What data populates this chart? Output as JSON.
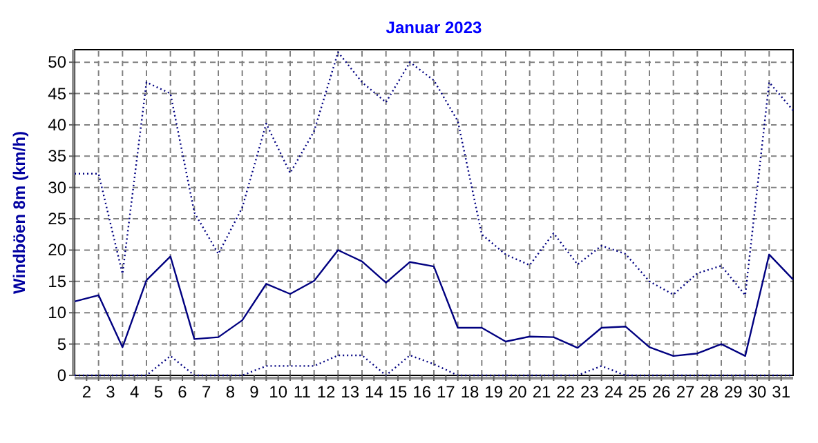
{
  "chart_data": {
    "type": "line",
    "title": "Januar 2023",
    "ylabel": "Windböen 8m  (km/h)",
    "x": [
      1.5,
      2.5,
      3.5,
      4.5,
      5.5,
      6.5,
      7.5,
      8.5,
      9.5,
      10.5,
      11.5,
      12.5,
      13.5,
      14.5,
      15.5,
      16.5,
      17.5,
      18.5,
      19.5,
      20.5,
      21.5,
      22.5,
      23.5,
      24.5,
      25.5,
      26.5,
      27.5,
      28.5,
      29.5,
      30.5,
      31.5
    ],
    "xlim": [
      1.5,
      31.5
    ],
    "xticks": [
      2,
      3,
      4,
      5,
      6,
      7,
      8,
      9,
      10,
      11,
      12,
      13,
      14,
      15,
      16,
      17,
      18,
      19,
      20,
      21,
      22,
      23,
      24,
      25,
      26,
      27,
      28,
      29,
      30,
      31,
      {
        "value": 2.5,
        "label": null
      },
      {
        "value": 3.5,
        "label": null
      },
      {
        "value": 4.5,
        "label": null
      },
      {
        "value": 5.5,
        "label": null
      },
      {
        "value": 6.5,
        "label": null
      },
      {
        "value": 7.5,
        "label": null
      },
      {
        "value": 8.5,
        "label": null
      },
      {
        "value": 9.5,
        "label": null
      },
      {
        "value": 10.5,
        "label": null
      },
      {
        "value": 11.5,
        "label": null
      },
      {
        "value": 12.5,
        "label": null
      },
      {
        "value": 13.5,
        "label": null
      },
      {
        "value": 14.5,
        "label": null
      },
      {
        "value": 15.5,
        "label": null
      },
      {
        "value": 16.5,
        "label": null
      },
      {
        "value": 17.5,
        "label": null
      },
      {
        "value": 18.5,
        "label": null
      },
      {
        "value": 19.5,
        "label": null
      },
      {
        "value": 20.5,
        "label": null
      },
      {
        "value": 21.5,
        "label": null
      },
      {
        "value": 22.5,
        "label": null
      },
      {
        "value": 23.5,
        "label": null
      },
      {
        "value": 24.5,
        "label": null
      },
      {
        "value": 25.5,
        "label": null
      },
      {
        "value": 26.5,
        "label": null
      },
      {
        "value": 27.5,
        "label": null
      },
      {
        "value": 28.5,
        "label": null
      },
      {
        "value": 29.5,
        "label": null
      },
      {
        "value": 30.5,
        "label": null
      }
    ],
    "ylim": [
      0,
      52
    ],
    "yticks": [
      0,
      5,
      10,
      15,
      20,
      25,
      30,
      35,
      40,
      45,
      50
    ],
    "grid": true,
    "series": [
      {
        "color": "#000080",
        "line_style": "dotted",
        "values": [
          32.2,
          32.2,
          16.2,
          46.8,
          45,
          26,
          19.4,
          26.8,
          40.2,
          32.3,
          39,
          51.6,
          46.8,
          43.6,
          50,
          47.1,
          40.6,
          22.5,
          19.3,
          17.6,
          22.7,
          17.7,
          20.7,
          19.4,
          15,
          12.9,
          16.3,
          17.5,
          12.8,
          46.8,
          42.3
        ]
      },
      {
        "color": "#000080",
        "line_style": "solid",
        "values": [
          11.8,
          12.8,
          4.5,
          15.2,
          19,
          5.8,
          6.1,
          8.8,
          14.6,
          13,
          15.1,
          20,
          18.2,
          14.8,
          18.1,
          17.4,
          7.6,
          7.6,
          5.4,
          6.2,
          6.1,
          4.4,
          7.6,
          7.8,
          4.5,
          3.1,
          3.5,
          5,
          3.1,
          19.3,
          15.3
        ]
      },
      {
        "color": "#000080",
        "line_style": "dotted",
        "values": [
          0,
          0,
          0,
          0,
          3.1,
          0,
          0,
          0,
          1.5,
          1.5,
          1.5,
          3.2,
          3.2,
          0,
          3.2,
          1.8,
          0,
          0,
          0,
          0,
          0,
          0,
          1.5,
          0,
          0,
          0,
          0,
          0,
          0,
          0,
          0
        ]
      }
    ]
  }
}
